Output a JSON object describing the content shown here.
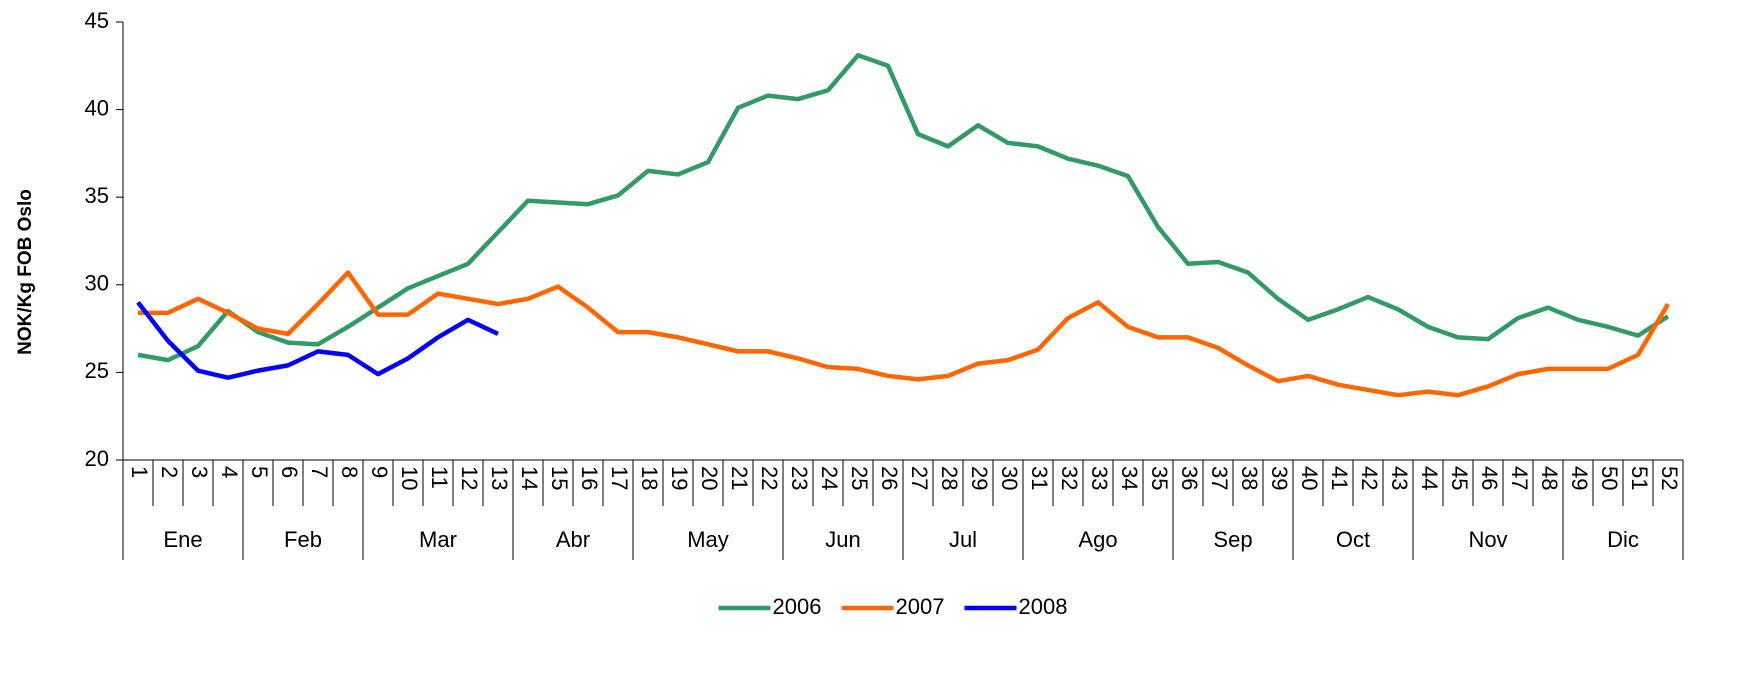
{
  "chart_data": {
    "type": "line",
    "y_label": "NOK/Kg FOB Oslo",
    "categories": [
      "1",
      "2",
      "3",
      "4",
      "5",
      "6",
      "7",
      "8",
      "9",
      "10",
      "11",
      "12",
      "13",
      "14",
      "15",
      "16",
      "17",
      "18",
      "19",
      "20",
      "21",
      "22",
      "23",
      "24",
      "25",
      "26",
      "27",
      "28",
      "29",
      "30",
      "31",
      "32",
      "33",
      "34",
      "35",
      "36",
      "37",
      "38",
      "39",
      "40",
      "41",
      "42",
      "43",
      "44",
      "45",
      "46",
      "47",
      "48",
      "49",
      "50",
      "51",
      "52"
    ],
    "months": [
      "Ene",
      "Ene",
      "Ene",
      "Ene",
      "Feb",
      "Feb",
      "Feb",
      "Feb",
      "Mar",
      "Mar",
      "Mar",
      "Mar",
      "Mar",
      "Abr",
      "Abr",
      "Abr",
      "Abr",
      "May",
      "May",
      "May",
      "May",
      "May",
      "Jun",
      "Jun",
      "Jun",
      "Jun",
      "Jul",
      "Jul",
      "Jul",
      "Jul",
      "Ago",
      "Ago",
      "Ago",
      "Ago",
      "Ago",
      "Sep",
      "Sep",
      "Sep",
      "Sep",
      "Oct",
      "Oct",
      "Oct",
      "Oct",
      "Nov",
      "Nov",
      "Nov",
      "Nov",
      "Nov",
      "Dic",
      "Dic",
      "Dic",
      "Dic"
    ],
    "series": [
      {
        "name": "2006",
        "color": "#339966",
        "values": [
          26.0,
          25.7,
          26.5,
          28.5,
          27.3,
          26.7,
          26.6,
          27.6,
          28.7,
          29.8,
          30.5,
          31.2,
          33.0,
          34.8,
          34.7,
          34.6,
          35.1,
          36.5,
          36.3,
          37.0,
          40.1,
          40.8,
          40.6,
          41.1,
          43.1,
          42.5,
          38.6,
          37.9,
          39.1,
          38.1,
          37.9,
          37.2,
          36.8,
          36.2,
          33.3,
          31.2,
          31.3,
          30.7,
          29.2,
          28.0,
          28.6,
          29.3,
          28.6,
          27.6,
          27.0,
          26.9,
          28.1,
          28.7,
          28.0,
          27.6,
          27.1,
          28.2
        ]
      },
      {
        "name": "2007",
        "color": "#ff6600",
        "values": [
          28.4,
          28.4,
          29.2,
          28.4,
          27.5,
          27.2,
          28.9,
          30.7,
          28.3,
          28.3,
          29.5,
          29.2,
          28.9,
          29.2,
          29.9,
          28.7,
          27.3,
          27.3,
          27.0,
          26.6,
          26.2,
          26.2,
          25.8,
          25.3,
          25.2,
          24.8,
          24.6,
          24.8,
          25.5,
          25.7,
          26.3,
          28.1,
          29.0,
          27.6,
          27.0,
          27.0,
          26.4,
          25.4,
          24.5,
          24.8,
          24.3,
          24.0,
          23.7,
          23.9,
          23.7,
          24.2,
          24.9,
          25.2,
          25.2,
          25.2,
          26.0,
          28.9
        ]
      },
      {
        "name": "2008",
        "color": "#0000ff",
        "values": [
          29.0,
          26.8,
          25.1,
          24.7,
          25.1,
          25.4,
          26.2,
          26.0,
          24.9,
          25.8,
          27.0,
          28.0,
          27.2,
          null,
          null,
          null,
          null,
          null,
          null,
          null,
          null,
          null,
          null,
          null,
          null,
          null,
          null,
          null,
          null,
          null,
          null,
          null,
          null,
          null,
          null,
          null,
          null,
          null,
          null,
          null,
          null,
          null,
          null,
          null,
          null,
          null,
          null,
          null,
          null,
          null,
          null,
          null
        ]
      }
    ],
    "ylim": [
      20,
      45
    ],
    "yticks": [
      20,
      25,
      30,
      35,
      40,
      45
    ],
    "legend": "bottom"
  }
}
